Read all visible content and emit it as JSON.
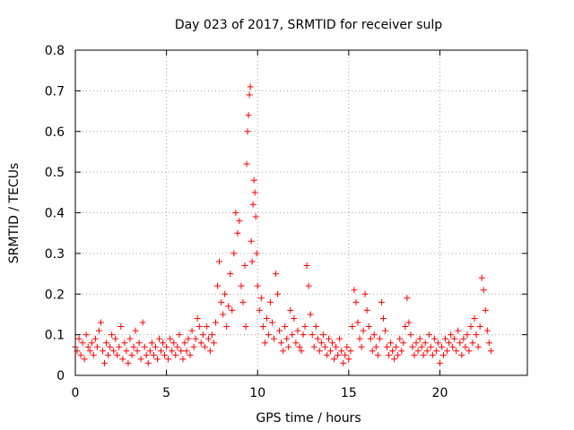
{
  "chart_data": {
    "type": "scatter",
    "title": "Day 023 of 2017, SRMTID for receiver sulp",
    "xlabel": "GPS time / hours",
    "ylabel": "SRMTID / TECUs",
    "xlim": [
      0,
      24.8
    ],
    "ylim": [
      0,
      0.8
    ],
    "xticks": [
      0,
      5,
      10,
      15,
      20
    ],
    "yticks": [
      0,
      0.1,
      0.2,
      0.3,
      0.4,
      0.5,
      0.6,
      0.7,
      0.8
    ],
    "xtick_labels": [
      "0",
      "5",
      "10",
      "15",
      "20"
    ],
    "ytick_labels": [
      "0",
      "0.1",
      "0.2",
      "0.3",
      "0.4",
      "0.5",
      "0.6",
      "0.7",
      "0.8"
    ],
    "grid": true,
    "marker": "+",
    "series": [
      {
        "name": "sulp",
        "color": "#ff0000",
        "points": [
          [
            0.0,
            0.07
          ],
          [
            0.1,
            0.06
          ],
          [
            0.2,
            0.09
          ],
          [
            0.3,
            0.05
          ],
          [
            0.4,
            0.08
          ],
          [
            0.5,
            0.04
          ],
          [
            0.6,
            0.1
          ],
          [
            0.7,
            0.07
          ],
          [
            0.8,
            0.06
          ],
          [
            0.9,
            0.08
          ],
          [
            1.0,
            0.05
          ],
          [
            1.1,
            0.09
          ],
          [
            1.2,
            0.07
          ],
          [
            1.3,
            0.11
          ],
          [
            1.4,
            0.13
          ],
          [
            1.5,
            0.06
          ],
          [
            1.6,
            0.03
          ],
          [
            1.7,
            0.08
          ],
          [
            1.8,
            0.05
          ],
          [
            1.9,
            0.07
          ],
          [
            2.0,
            0.1
          ],
          [
            2.1,
            0.06
          ],
          [
            2.2,
            0.09
          ],
          [
            2.3,
            0.05
          ],
          [
            2.4,
            0.07
          ],
          [
            2.5,
            0.12
          ],
          [
            2.6,
            0.04
          ],
          [
            2.7,
            0.08
          ],
          [
            2.8,
            0.06
          ],
          [
            2.9,
            0.03
          ],
          [
            3.0,
            0.09
          ],
          [
            3.1,
            0.05
          ],
          [
            3.2,
            0.07
          ],
          [
            3.3,
            0.11
          ],
          [
            3.4,
            0.06
          ],
          [
            3.5,
            0.08
          ],
          [
            3.6,
            0.04
          ],
          [
            3.7,
            0.13
          ],
          [
            3.8,
            0.07
          ],
          [
            3.9,
            0.05
          ],
          [
            4.0,
            0.03
          ],
          [
            4.1,
            0.06
          ],
          [
            4.2,
            0.08
          ],
          [
            4.3,
            0.05
          ],
          [
            4.4,
            0.07
          ],
          [
            4.5,
            0.04
          ],
          [
            4.6,
            0.09
          ],
          [
            4.7,
            0.06
          ],
          [
            4.8,
            0.08
          ],
          [
            4.9,
            0.05
          ],
          [
            5.0,
            0.07
          ],
          [
            5.1,
            0.04
          ],
          [
            5.2,
            0.09
          ],
          [
            5.3,
            0.06
          ],
          [
            5.4,
            0.08
          ],
          [
            5.5,
            0.05
          ],
          [
            5.6,
            0.07
          ],
          [
            5.7,
            0.1
          ],
          [
            5.8,
            0.06
          ],
          [
            5.9,
            0.04
          ],
          [
            6.0,
            0.08
          ],
          [
            6.1,
            0.06
          ],
          [
            6.2,
            0.09
          ],
          [
            6.3,
            0.05
          ],
          [
            6.4,
            0.11
          ],
          [
            6.5,
            0.07
          ],
          [
            6.6,
            0.09
          ],
          [
            6.7,
            0.14
          ],
          [
            6.8,
            0.12
          ],
          [
            6.9,
            0.08
          ],
          [
            7.0,
            0.1
          ],
          [
            7.1,
            0.07
          ],
          [
            7.2,
            0.12
          ],
          [
            7.3,
            0.09
          ],
          [
            7.4,
            0.06
          ],
          [
            7.5,
            0.1
          ],
          [
            7.6,
            0.08
          ],
          [
            7.7,
            0.13
          ],
          [
            7.8,
            0.22
          ],
          [
            7.9,
            0.28
          ],
          [
            8.0,
            0.18
          ],
          [
            8.1,
            0.15
          ],
          [
            8.2,
            0.2
          ],
          [
            8.3,
            0.12
          ],
          [
            8.4,
            0.17
          ],
          [
            8.5,
            0.25
          ],
          [
            8.6,
            0.16
          ],
          [
            8.7,
            0.3
          ],
          [
            8.8,
            0.4
          ],
          [
            8.9,
            0.35
          ],
          [
            9.0,
            0.38
          ],
          [
            9.1,
            0.22
          ],
          [
            9.2,
            0.18
          ],
          [
            9.3,
            0.27
          ],
          [
            9.35,
            0.12
          ],
          [
            9.4,
            0.52
          ],
          [
            9.45,
            0.6
          ],
          [
            9.5,
            0.64
          ],
          [
            9.55,
            0.69
          ],
          [
            9.6,
            0.71
          ],
          [
            9.65,
            0.33
          ],
          [
            9.7,
            0.28
          ],
          [
            9.75,
            0.42
          ],
          [
            9.8,
            0.48
          ],
          [
            9.85,
            0.45
          ],
          [
            9.9,
            0.39
          ],
          [
            9.95,
            0.3
          ],
          [
            10.0,
            0.22
          ],
          [
            10.1,
            0.16
          ],
          [
            10.2,
            0.19
          ],
          [
            10.3,
            0.12
          ],
          [
            10.4,
            0.08
          ],
          [
            10.5,
            0.14
          ],
          [
            10.6,
            0.1
          ],
          [
            10.7,
            0.18
          ],
          [
            10.8,
            0.13
          ],
          [
            10.9,
            0.09
          ],
          [
            11.0,
            0.25
          ],
          [
            11.1,
            0.2
          ],
          [
            11.2,
            0.11
          ],
          [
            11.3,
            0.08
          ],
          [
            11.4,
            0.06
          ],
          [
            11.5,
            0.12
          ],
          [
            11.6,
            0.09
          ],
          [
            11.7,
            0.07
          ],
          [
            11.8,
            0.16
          ],
          [
            11.9,
            0.1
          ],
          [
            12.0,
            0.14
          ],
          [
            12.1,
            0.08
          ],
          [
            12.2,
            0.11
          ],
          [
            12.3,
            0.07
          ],
          [
            12.4,
            0.06
          ],
          [
            12.5,
            0.1
          ],
          [
            12.6,
            0.12
          ],
          [
            12.7,
            0.27
          ],
          [
            12.8,
            0.22
          ],
          [
            12.9,
            0.15
          ],
          [
            13.0,
            0.1
          ],
          [
            13.1,
            0.07
          ],
          [
            13.2,
            0.12
          ],
          [
            13.3,
            0.09
          ],
          [
            13.4,
            0.06
          ],
          [
            13.5,
            0.08
          ],
          [
            13.6,
            0.1
          ],
          [
            13.7,
            0.07
          ],
          [
            13.8,
            0.05
          ],
          [
            13.9,
            0.09
          ],
          [
            14.0,
            0.06
          ],
          [
            14.1,
            0.08
          ],
          [
            14.2,
            0.04
          ],
          [
            14.3,
            0.07
          ],
          [
            14.4,
            0.05
          ],
          [
            14.5,
            0.09
          ],
          [
            14.6,
            0.06
          ],
          [
            14.7,
            0.03
          ],
          [
            14.8,
            0.05
          ],
          [
            14.9,
            0.07
          ],
          [
            15.0,
            0.04
          ],
          [
            15.1,
            0.06
          ],
          [
            15.2,
            0.12
          ],
          [
            15.3,
            0.21
          ],
          [
            15.4,
            0.18
          ],
          [
            15.5,
            0.13
          ],
          [
            15.6,
            0.09
          ],
          [
            15.7,
            0.07
          ],
          [
            15.8,
            0.11
          ],
          [
            15.9,
            0.2
          ],
          [
            16.0,
            0.16
          ],
          [
            16.1,
            0.12
          ],
          [
            16.2,
            0.09
          ],
          [
            16.3,
            0.06
          ],
          [
            16.4,
            0.1
          ],
          [
            16.5,
            0.07
          ],
          [
            16.6,
            0.05
          ],
          [
            16.7,
            0.09
          ],
          [
            16.8,
            0.18
          ],
          [
            16.9,
            0.14
          ],
          [
            17.0,
            0.11
          ],
          [
            17.1,
            0.07
          ],
          [
            17.2,
            0.05
          ],
          [
            17.3,
            0.08
          ],
          [
            17.4,
            0.06
          ],
          [
            17.5,
            0.04
          ],
          [
            17.6,
            0.07
          ],
          [
            17.7,
            0.05
          ],
          [
            17.8,
            0.09
          ],
          [
            17.9,
            0.06
          ],
          [
            18.0,
            0.08
          ],
          [
            18.1,
            0.12
          ],
          [
            18.2,
            0.19
          ],
          [
            18.3,
            0.13
          ],
          [
            18.4,
            0.1
          ],
          [
            18.5,
            0.07
          ],
          [
            18.6,
            0.05
          ],
          [
            18.7,
            0.08
          ],
          [
            18.8,
            0.06
          ],
          [
            18.9,
            0.09
          ],
          [
            19.0,
            0.07
          ],
          [
            19.1,
            0.05
          ],
          [
            19.2,
            0.08
          ],
          [
            19.3,
            0.06
          ],
          [
            19.4,
            0.1
          ],
          [
            19.5,
            0.07
          ],
          [
            19.6,
            0.05
          ],
          [
            19.7,
            0.09
          ],
          [
            19.8,
            0.06
          ],
          [
            19.9,
            0.08
          ],
          [
            20.0,
            0.03
          ],
          [
            20.1,
            0.07
          ],
          [
            20.2,
            0.05
          ],
          [
            20.3,
            0.09
          ],
          [
            20.4,
            0.06
          ],
          [
            20.5,
            0.08
          ],
          [
            20.6,
            0.1
          ],
          [
            20.7,
            0.07
          ],
          [
            20.8,
            0.09
          ],
          [
            20.9,
            0.06
          ],
          [
            21.0,
            0.11
          ],
          [
            21.1,
            0.08
          ],
          [
            21.2,
            0.05
          ],
          [
            21.3,
            0.09
          ],
          [
            21.4,
            0.07
          ],
          [
            21.5,
            0.1
          ],
          [
            21.6,
            0.06
          ],
          [
            21.7,
            0.12
          ],
          [
            21.8,
            0.08
          ],
          [
            21.9,
            0.14
          ],
          [
            22.0,
            0.1
          ],
          [
            22.1,
            0.07
          ],
          [
            22.2,
            0.12
          ],
          [
            22.3,
            0.24
          ],
          [
            22.4,
            0.21
          ],
          [
            22.5,
            0.16
          ],
          [
            22.6,
            0.11
          ],
          [
            22.7,
            0.08
          ],
          [
            22.8,
            0.06
          ]
        ]
      }
    ]
  },
  "colors": {
    "marker": "#ff0000",
    "grid": "#a0a0a0",
    "frame": "#000000",
    "background": "#ffffff"
  }
}
